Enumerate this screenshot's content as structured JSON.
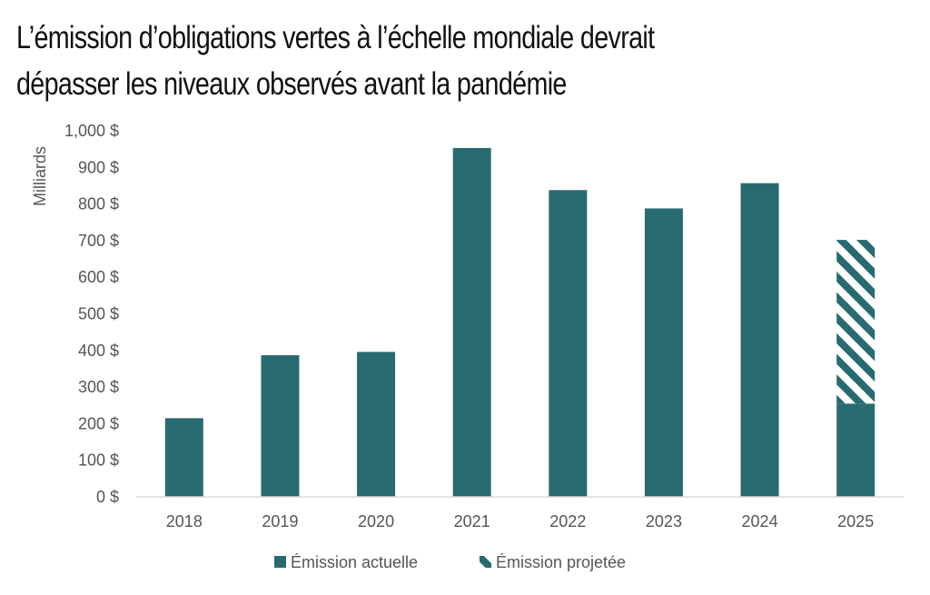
{
  "title_lines": [
    "L’émission d’obligations vertes à l’échelle mondiale devrait",
    "dépasser les niveaux observés avant la pandémie"
  ],
  "colors": {
    "bar": "#276b71",
    "axis": "#d9d9d9",
    "text": "#555555",
    "title": "#111111",
    "background": "#ffffff"
  },
  "chart_data": {
    "type": "bar",
    "stacked": true,
    "title": "L’émission d’obligations vertes à l’échelle mondiale devrait dépasser les niveaux observés avant la pandémie",
    "xlabel": "",
    "ylabel": "Milliards",
    "categories": [
      "2018",
      "2019",
      "2020",
      "2021",
      "2022",
      "2023",
      "2024",
      "2025"
    ],
    "series": [
      {
        "name": "Émission actuelle",
        "pattern": "solid",
        "values": [
          215,
          387,
          396,
          953,
          838,
          788,
          857,
          255
        ]
      },
      {
        "name": "Émission projetée",
        "pattern": "hatched",
        "values": [
          0,
          0,
          0,
          0,
          0,
          0,
          0,
          447
        ]
      }
    ],
    "ylim": [
      0,
      1000
    ],
    "yticks": [
      0,
      100,
      200,
      300,
      400,
      500,
      600,
      700,
      800,
      900,
      1000
    ],
    "ytick_labels": [
      "0 $",
      "100 $",
      "200 $",
      "300 $",
      "400 $",
      "500 $",
      "600 $",
      "700 $",
      "800 $",
      "900 $",
      "1,000 $"
    ],
    "grid": false,
    "legend_position": "bottom-center"
  }
}
